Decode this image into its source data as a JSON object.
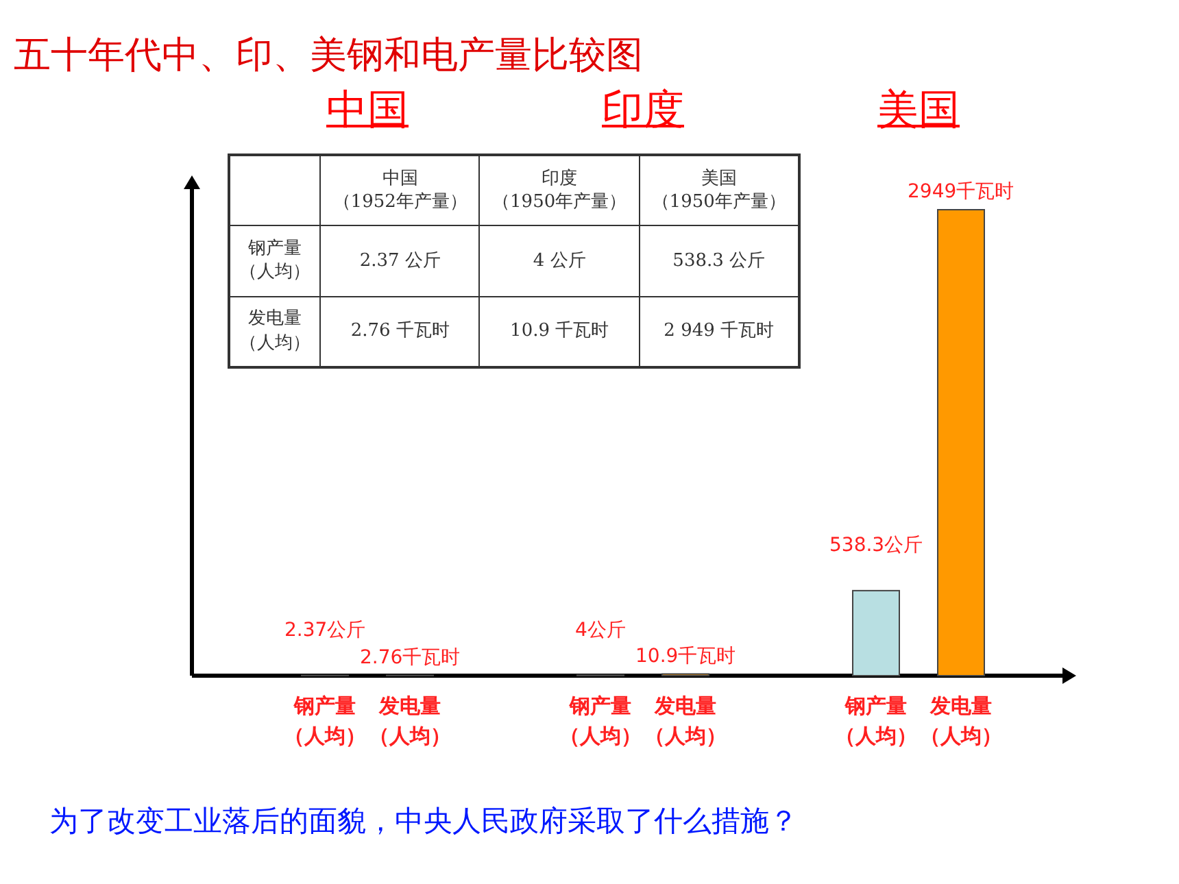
{
  "chart_data": {
    "type": "bar",
    "title": "五十年代中、印、美钢和电产量比较图",
    "categories": [
      "中国",
      "印度",
      "美国"
    ],
    "ylim": [
      0,
      2949
    ],
    "series": [
      {
        "name": "钢产量（人均）",
        "color": "#b8dfe2",
        "values": [
          2.37,
          4,
          538.3
        ],
        "value_labels": [
          "2.37公斤",
          "4公斤",
          "538.3公斤"
        ]
      },
      {
        "name": "发电量（人均）",
        "color": "#ff9900",
        "values": [
          2.76,
          10.9,
          2949
        ],
        "value_labels": [
          "2.76千瓦时",
          "10.9千瓦时",
          "2949千瓦时"
        ]
      }
    ],
    "annotations": [
      "为了改变工业落后的面貌，中央人民政府采取了什么措施？",
      "中国（1952年产量）",
      "印度（1950年产量）",
      "美国（1950年产量）",
      "钢产量（人均）",
      "2.37 公斤",
      "4 公斤",
      "538.3 公斤",
      "发电量（人均）",
      "2.76 千瓦时",
      "10.9 千瓦时",
      "2 949 千瓦时"
    ]
  }
}
